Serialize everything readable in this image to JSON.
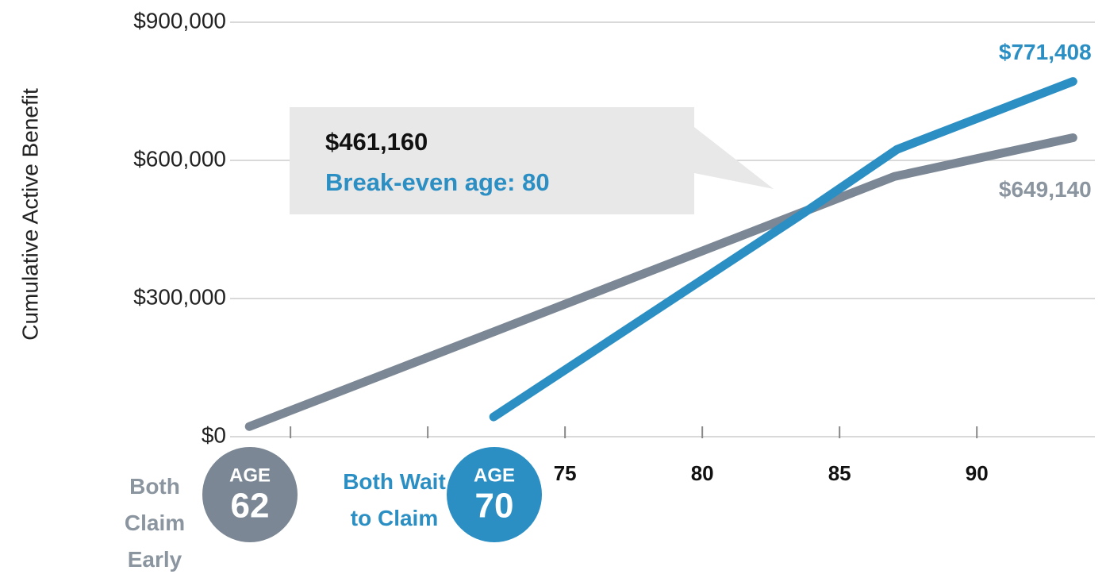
{
  "chart_data": {
    "type": "line",
    "y_axis_label": "Cumulative Active Benefit",
    "callout": {
      "value_text": "$461,160",
      "text": "Break-even age: 80"
    },
    "xlim": [
      62.8,
      94.3
    ],
    "xticks": [
      75,
      80,
      85,
      90
    ],
    "minor_xticks": [
      65,
      70
    ],
    "ylim": [
      0,
      900000
    ],
    "yticks": [
      {
        "value": 0,
        "label": "$0"
      },
      {
        "value": 300000,
        "label": "$300,000"
      },
      {
        "value": 600000,
        "label": "$600,000"
      },
      {
        "value": 900000,
        "label": "$900,000"
      }
    ],
    "grid": true,
    "series": [
      {
        "name": "Both Claim Early",
        "color": "#7b8794",
        "label_color": "#8a95a0",
        "badge": {
          "label": "AGE",
          "age": 62
        },
        "x": [
          63.5,
          87,
          93.5
        ],
        "values": [
          22000,
          565000,
          649140
        ],
        "value_labels": [
          null,
          null,
          "$649,140"
        ]
      },
      {
        "name": "Both Wait to Claim",
        "color": "#2b8fc4",
        "label_color": "#2b8fc4",
        "badge": {
          "label": "AGE",
          "age": 70
        },
        "x": [
          72.4,
          83.7,
          87.1,
          93.5
        ],
        "values": [
          43000,
          486000,
          624000,
          771408
        ],
        "value_labels": [
          null,
          null,
          null,
          "$771,408"
        ]
      }
    ]
  }
}
